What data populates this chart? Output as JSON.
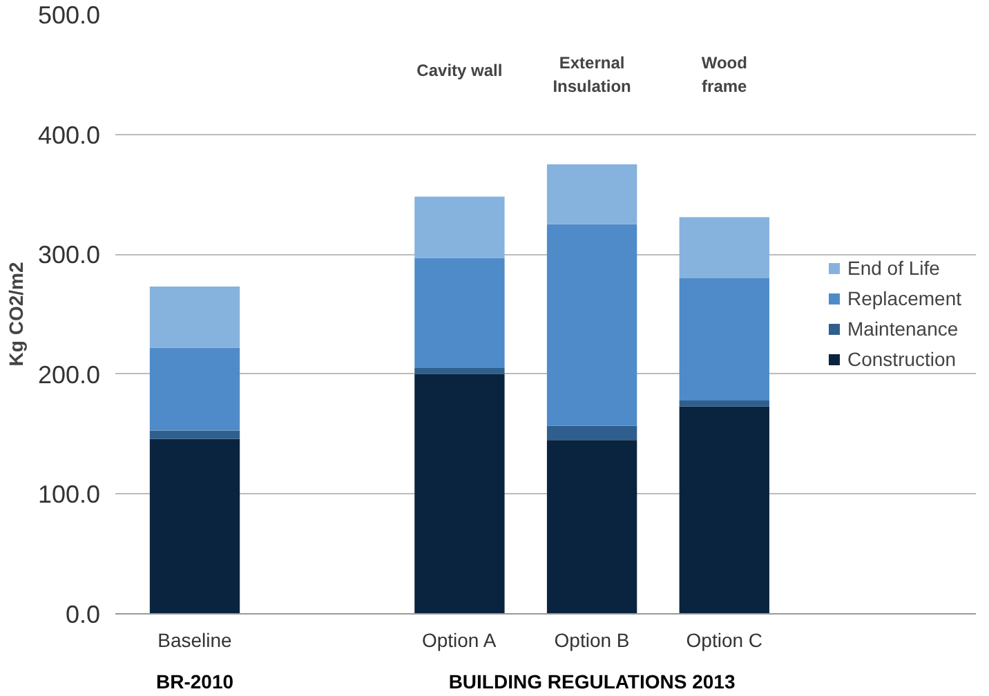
{
  "chart_data": {
    "type": "bar",
    "stacked": true,
    "ylabel": "Kg CO2/m2",
    "categories": [
      "Baseline",
      null,
      "Option A",
      "Option B",
      "Option C"
    ],
    "series": [
      {
        "name": "Construction",
        "color": "#0a2440",
        "values": [
          146,
          null,
          200,
          145,
          173
        ]
      },
      {
        "name": "Maintenance",
        "color": "#2e5f8e",
        "values": [
          7,
          null,
          5,
          12,
          5
        ]
      },
      {
        "name": "Replacement",
        "color": "#4f8bc9",
        "values": [
          69,
          null,
          92,
          168,
          102
        ]
      },
      {
        "name": "End of Life",
        "color": "#86b2de",
        "values": [
          51,
          null,
          51,
          50,
          51
        ]
      }
    ],
    "ylim": [
      0,
      500
    ],
    "yticks": [
      {
        "value": 0,
        "label": "0.0"
      },
      {
        "value": 100,
        "label": "100.0"
      },
      {
        "value": 200,
        "label": "200.0"
      },
      {
        "value": 300,
        "label": "300.0"
      },
      {
        "value": 400,
        "label": "400.0"
      },
      {
        "value": 500,
        "label": "500.0"
      }
    ],
    "grid": "y",
    "legend": "right",
    "annotations": [
      "Cavity wall",
      "External\nInsulation",
      "Wood\nframe",
      "BR-2010",
      "BUILDING REGULATIONS 2013"
    ]
  }
}
